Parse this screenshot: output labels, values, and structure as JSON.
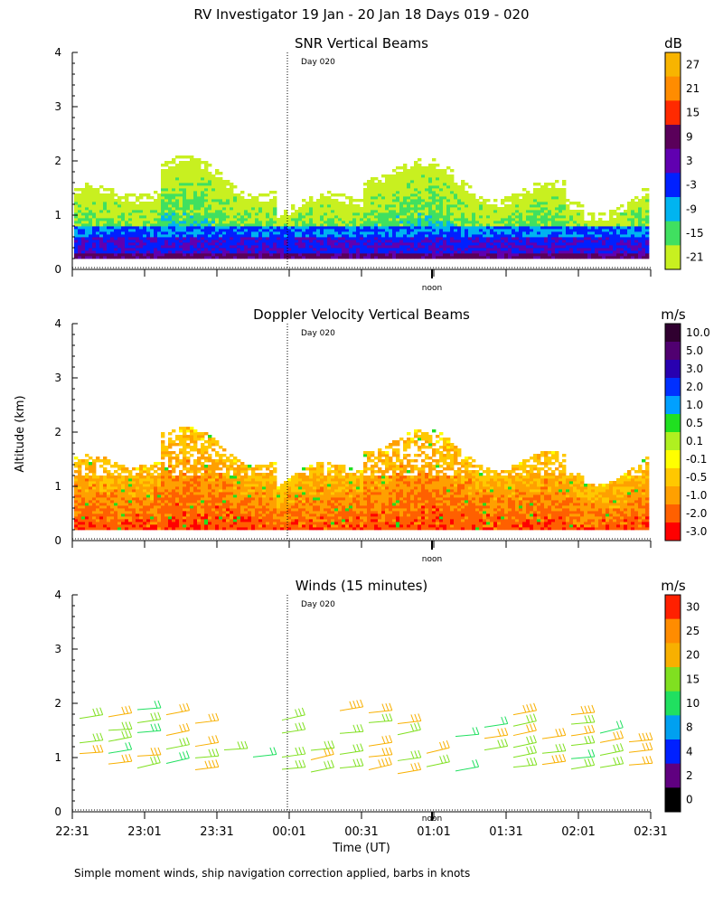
{
  "page_title": "RV Investigator  19 Jan - 20 Jan 18 Days 019 - 020",
  "y_axis_label": "Altitude (km)",
  "x_axis_label": "Time (UT)",
  "footnote": "Simple moment winds, ship navigation correction applied, barbs in knots",
  "day_marker": "Day 020",
  "noon_marker": "noon",
  "chart_data": [
    {
      "type": "heatmap",
      "title": "SNR Vertical Beams",
      "units": "dB",
      "ylim": [
        0,
        4
      ],
      "yticks": [
        "0",
        "1",
        "2",
        "3",
        "4"
      ],
      "colorbar_ticks": [
        "27",
        "21",
        "15",
        "9",
        "3",
        "-3",
        "-9",
        "-15",
        "-21"
      ],
      "colorbar_colors": [
        "#f8b400",
        "#ff8c00",
        "#ff2a00",
        "#5a005a",
        "#6000b0",
        "#0020ff",
        "#00b4f0",
        "#40e060",
        "#c8f020"
      ]
    },
    {
      "type": "heatmap",
      "title": "Doppler Velocity Vertical Beams",
      "units": "m/s",
      "ylim": [
        0,
        4
      ],
      "yticks": [
        "0",
        "1",
        "2",
        "3",
        "4"
      ],
      "colorbar_ticks": [
        "10.0",
        "5.0",
        "3.0",
        "2.0",
        "1.0",
        "0.5",
        "0.1",
        "-0.1",
        "-0.5",
        "-1.0",
        "-2.0",
        "-3.0"
      ],
      "colorbar_colors": [
        "#300030",
        "#500070",
        "#2800b0",
        "#0030ff",
        "#00a0ff",
        "#20e020",
        "#b0f020",
        "#ffff00",
        "#ffc800",
        "#ffa000",
        "#ff6000",
        "#ff0000"
      ]
    },
    {
      "type": "scatter",
      "title": "Winds (15 minutes)",
      "units": "m/s",
      "ylim": [
        0,
        4
      ],
      "yticks": [
        "0",
        "1",
        "2",
        "3",
        "4"
      ],
      "colorbar_ticks": [
        "30",
        "25",
        "20",
        "15",
        "10",
        "8",
        "4",
        "2",
        "0"
      ],
      "colorbar_colors": [
        "#ff2000",
        "#ff8c00",
        "#f8b000",
        "#80e020",
        "#20e060",
        "#00a0f0",
        "#0020ff",
        "#600080",
        "#000000"
      ],
      "xticks": [
        "22:31",
        "23:01",
        "23:31",
        "00:01",
        "00:31",
        "01:01",
        "01:31",
        "02:01",
        "02:31"
      ]
    }
  ]
}
